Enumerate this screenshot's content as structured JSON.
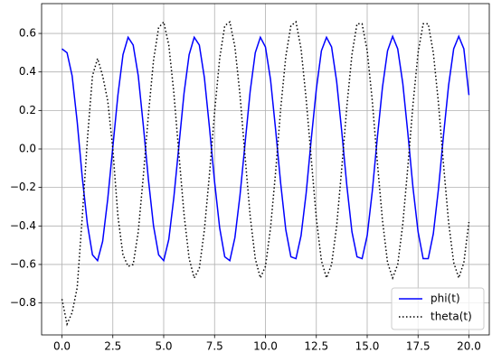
{
  "chart_data": {
    "type": "line",
    "x": [
      0,
      0.25,
      0.5,
      0.75,
      1,
      1.25,
      1.5,
      1.75,
      2,
      2.25,
      2.5,
      2.75,
      3,
      3.25,
      3.5,
      3.75,
      4,
      4.25,
      4.5,
      4.75,
      5,
      5.25,
      5.5,
      5.75,
      6,
      6.25,
      6.5,
      6.75,
      7,
      7.25,
      7.5,
      7.75,
      8,
      8.25,
      8.5,
      8.75,
      9,
      9.25,
      9.5,
      9.75,
      10,
      10.25,
      10.5,
      10.75,
      11,
      11.25,
      11.5,
      11.75,
      12,
      12.25,
      12.5,
      12.75,
      13,
      13.25,
      13.5,
      13.75,
      14,
      14.25,
      14.5,
      14.75,
      15,
      15.25,
      15.5,
      15.75,
      16,
      16.25,
      16.5,
      16.75,
      17,
      17.25,
      17.5,
      17.75,
      18,
      18.25,
      18.5,
      18.75,
      19,
      19.25,
      19.5,
      19.75,
      20
    ],
    "series": [
      {
        "name": "phi(t)",
        "color": "#0000ff",
        "style": "solid",
        "values": [
          0.52,
          0.5,
          0.38,
          0.14,
          -0.15,
          -0.39,
          -0.55,
          -0.58,
          -0.48,
          -0.26,
          0.01,
          0.28,
          0.49,
          0.58,
          0.54,
          0.38,
          0.12,
          -0.16,
          -0.4,
          -0.55,
          -0.58,
          -0.47,
          -0.25,
          0.02,
          0.29,
          0.49,
          0.58,
          0.54,
          0.37,
          0.11,
          -0.17,
          -0.41,
          -0.56,
          -0.58,
          -0.46,
          -0.24,
          0.03,
          0.3,
          0.5,
          0.58,
          0.53,
          0.36,
          0.1,
          -0.18,
          -0.42,
          -0.56,
          -0.57,
          -0.45,
          -0.23,
          0.05,
          0.31,
          0.51,
          0.58,
          0.53,
          0.35,
          0.09,
          -0.19,
          -0.43,
          -0.56,
          -0.57,
          -0.45,
          -0.22,
          0.06,
          0.32,
          0.51,
          0.585,
          0.52,
          0.34,
          0.08,
          -0.2,
          -0.43,
          -0.57,
          -0.57,
          -0.44,
          -0.21,
          0.07,
          0.33,
          0.52,
          0.585,
          0.52,
          0.28
        ]
      },
      {
        "name": "theta(t)",
        "color": "#000000",
        "style": "dotted",
        "values": [
          -0.78,
          -0.91,
          -0.85,
          -0.72,
          -0.35,
          0.05,
          0.38,
          0.47,
          0.38,
          0.25,
          0.0,
          -0.35,
          -0.55,
          -0.61,
          -0.6,
          -0.43,
          -0.14,
          0.18,
          0.46,
          0.63,
          0.66,
          0.54,
          0.29,
          -0.03,
          -0.34,
          -0.57,
          -0.67,
          -0.62,
          -0.42,
          -0.13,
          0.19,
          0.47,
          0.64,
          0.66,
          0.53,
          0.28,
          -0.04,
          -0.35,
          -0.57,
          -0.67,
          -0.61,
          -0.41,
          -0.12,
          0.21,
          0.48,
          0.64,
          0.66,
          0.52,
          0.26,
          -0.05,
          -0.36,
          -0.58,
          -0.67,
          -0.6,
          -0.4,
          -0.1,
          0.22,
          0.49,
          0.65,
          0.65,
          0.51,
          0.25,
          -0.07,
          -0.37,
          -0.59,
          -0.67,
          -0.6,
          -0.39,
          -0.09,
          0.23,
          0.5,
          0.65,
          0.65,
          0.5,
          0.24,
          -0.08,
          -0.38,
          -0.59,
          -0.67,
          -0.59,
          -0.38
        ]
      }
    ],
    "xlim": [
      -1,
      21
    ],
    "ylim": [
      -0.966,
      0.755
    ],
    "xticks": [
      {
        "value": 0,
        "label": "0.0"
      },
      2.5,
      {
        "value": 5,
        "label": "5.0"
      },
      7.5,
      {
        "value": 10,
        "label": "10.0"
      },
      12.5,
      {
        "value": 15,
        "label": "15.0"
      },
      17.5,
      {
        "value": 20,
        "label": "20.0"
      }
    ],
    "yticks": [
      {
        "value": -0.8,
        "label": "−0.8"
      },
      {
        "value": -0.6,
        "label": "−0.6"
      },
      {
        "value": -0.4,
        "label": "−0.4"
      },
      {
        "value": -0.2,
        "label": "−0.2"
      },
      {
        "value": 0,
        "label": "0.0"
      },
      0.2,
      0.4,
      0.6
    ],
    "grid": true,
    "legend": "lower right"
  }
}
